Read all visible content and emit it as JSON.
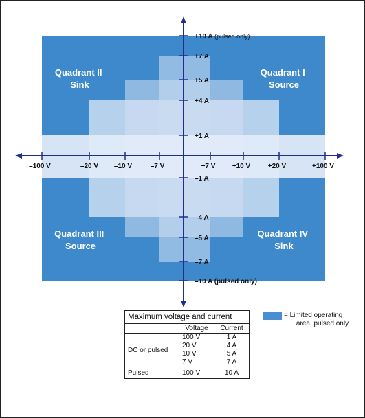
{
  "quadrants": {
    "q1": [
      "Quadrant I",
      "Source"
    ],
    "q2": [
      "Quadrant II",
      "Sink"
    ],
    "q3": [
      "Quadrant III",
      "Source"
    ],
    "q4": [
      "Quadrant IV",
      "Sink"
    ]
  },
  "x_axis_labels": [
    "–100 V",
    "–20 V",
    "–10 V",
    "–7 V",
    "+7 V",
    "+10 V",
    "+20 V",
    "+100 V"
  ],
  "y_axis_labels": {
    "top_main": "+10 A",
    "top_suffix": " (pulsed only)",
    "p7": "+7 A",
    "p5": "+5 A",
    "p4": "+4 A",
    "p1": "+1 A",
    "m1": "–1 A",
    "m4": "–4 A",
    "m5": "–5 A",
    "m7": "–7 A",
    "bottom": "–10 A (pulsed only)"
  },
  "table": {
    "title": "Maximum voltage and current",
    "col_voltage": "Voltage",
    "col_current": "Current",
    "rows": [
      {
        "label": "DC or pulsed",
        "voltages": [
          "100 V",
          "20 V",
          "10 V",
          "7 V"
        ],
        "currents": [
          "1 A",
          "4 A",
          "5 A",
          "7 A"
        ]
      },
      {
        "label": "Pulsed",
        "voltages": [
          "100 V"
        ],
        "currents": [
          "10 A"
        ]
      }
    ]
  },
  "legend": {
    "line1": "= Limited operating",
    "line2": "area, pulsed only"
  },
  "colors": {
    "pulsed_area": "#3d89cc",
    "dc_band": "#d6e3f3",
    "axis": "#1f2f8a"
  }
}
